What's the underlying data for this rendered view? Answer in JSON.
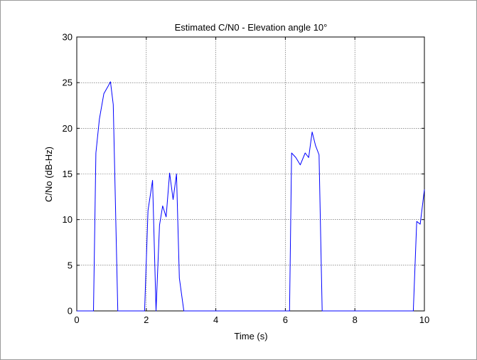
{
  "colors": {
    "background": "#ffffff",
    "axes": "#000000",
    "grid": "#555555",
    "series": "#0000ff"
  },
  "chart_data": {
    "type": "line",
    "title": "Estimated C/N0 - Elevation angle 10°",
    "xlabel": "Time (s)",
    "ylabel": "C/No (dB-Hz)",
    "xlim": [
      0,
      10
    ],
    "ylim": [
      0,
      30
    ],
    "xticks": [
      0,
      2,
      4,
      6,
      8,
      10
    ],
    "yticks": [
      0,
      5,
      10,
      15,
      20,
      25,
      30
    ],
    "grid": true,
    "series": [
      {
        "color": "#0000ff",
        "x": [
          0,
          0.48,
          0.55,
          0.65,
          0.78,
          0.9,
          0.97,
          1.05,
          1.18,
          1.95,
          2.05,
          2.18,
          2.28,
          2.38,
          2.47,
          2.57,
          2.67,
          2.77,
          2.87,
          2.95,
          3.08,
          6.12,
          6.18,
          6.3,
          6.43,
          6.57,
          6.67,
          6.77,
          6.87,
          6.97,
          7.06,
          9.68,
          9.78,
          9.88,
          10
        ],
        "y": [
          0,
          0,
          17.3,
          21.0,
          23.8,
          24.6,
          25.1,
          22.6,
          0,
          0,
          11.0,
          14.3,
          0,
          9.4,
          11.5,
          10.3,
          15.1,
          12.2,
          15.0,
          3.6,
          0,
          0,
          17.3,
          16.8,
          16.0,
          17.3,
          16.8,
          19.6,
          18.1,
          17.1,
          0,
          0,
          9.8,
          9.5,
          13.3
        ]
      }
    ]
  }
}
